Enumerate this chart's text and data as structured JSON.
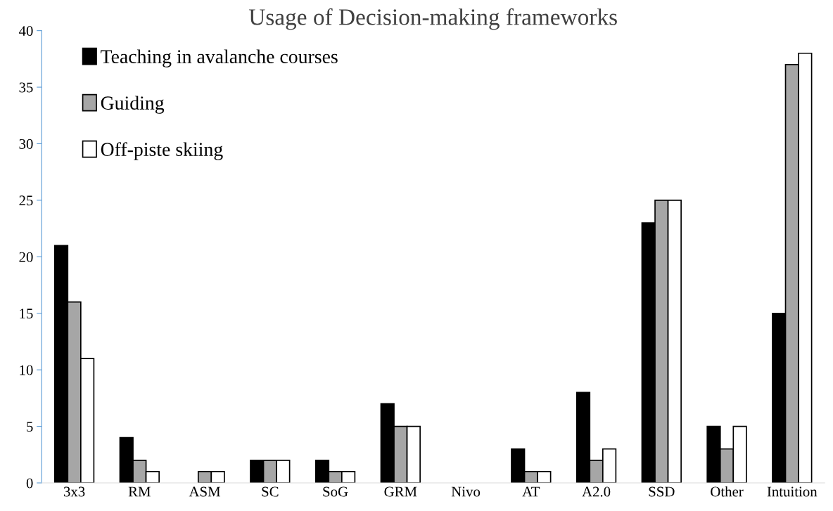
{
  "chart_data": {
    "type": "bar",
    "title": "Usage of Decision-making frameworks",
    "categories": [
      "3x3",
      "RM",
      "ASM",
      "SC",
      "SoG",
      "GRM",
      "Nivo",
      "AT",
      "A2.0",
      "SSD",
      "Other",
      "Intuition"
    ],
    "series": [
      {
        "name": "Teaching in avalanche courses",
        "color": "#000000",
        "values": [
          21,
          4,
          0,
          2,
          2,
          7,
          0,
          3,
          8,
          23,
          5,
          15
        ]
      },
      {
        "name": "Guiding",
        "color": "#a6a6a6",
        "values": [
          16,
          2,
          1,
          2,
          1,
          5,
          0,
          1,
          2,
          25,
          3,
          37
        ]
      },
      {
        "name": "Off-piste skiing",
        "color": "#ffffff",
        "values": [
          11,
          1,
          1,
          2,
          1,
          5,
          0,
          1,
          3,
          25,
          5,
          38
        ]
      }
    ],
    "ylim": [
      0,
      40
    ],
    "yticks": [
      0,
      5,
      10,
      15,
      20,
      25,
      30,
      35,
      40
    ],
    "grid": false,
    "legend": "top left"
  }
}
